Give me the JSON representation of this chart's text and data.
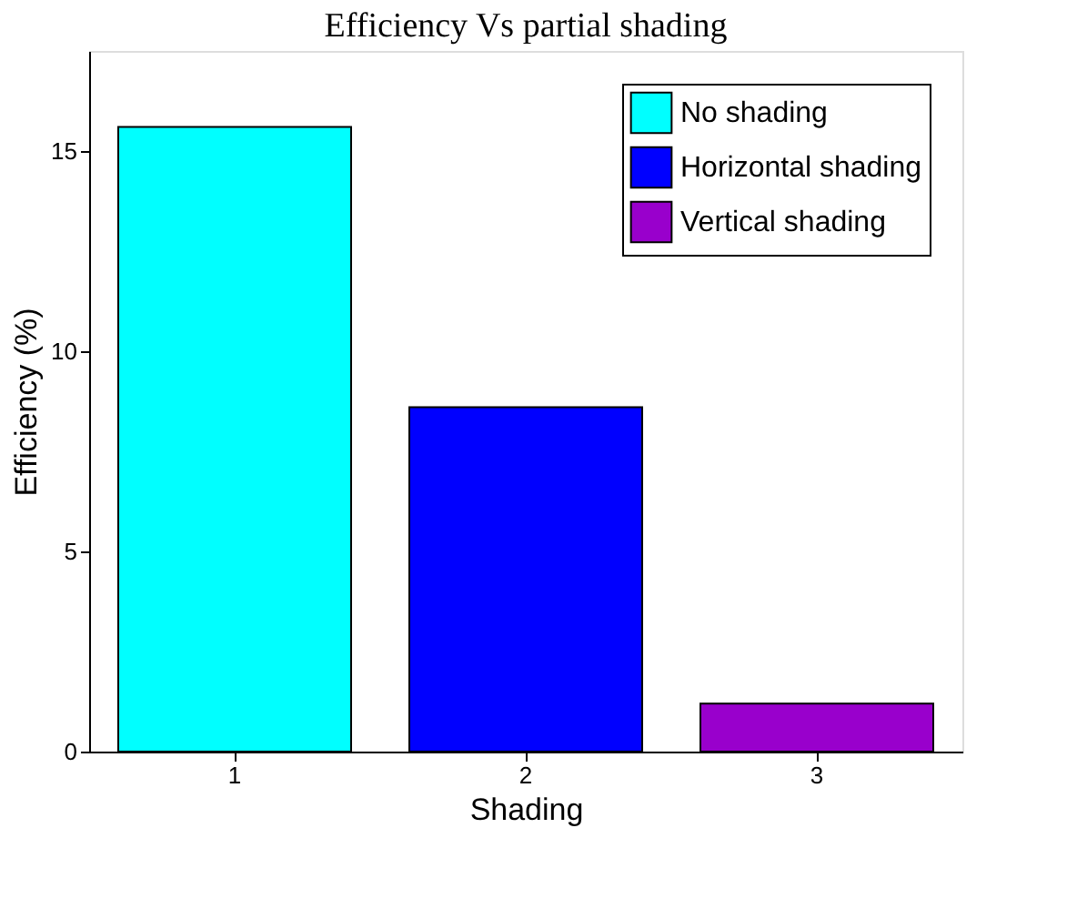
{
  "chart_data": {
    "type": "bar",
    "title": "Efficiency Vs partial shading",
    "xlabel": "Shading",
    "ylabel": "Efficiency (%)",
    "categories": [
      "1",
      "2",
      "3"
    ],
    "series": [
      {
        "name": "No shading",
        "color": "#00ffff",
        "values": [
          15.6,
          null,
          null
        ]
      },
      {
        "name": "Horizontal shading",
        "color": "#0000ff",
        "values": [
          null,
          8.6,
          null
        ]
      },
      {
        "name": "Vertical shading",
        "color": "#9900cc",
        "values": [
          null,
          null,
          1.2
        ]
      }
    ],
    "ylim": [
      0,
      17.5
    ],
    "yticks": [
      0,
      5,
      10,
      15
    ],
    "grid": false,
    "legend": "top right"
  }
}
